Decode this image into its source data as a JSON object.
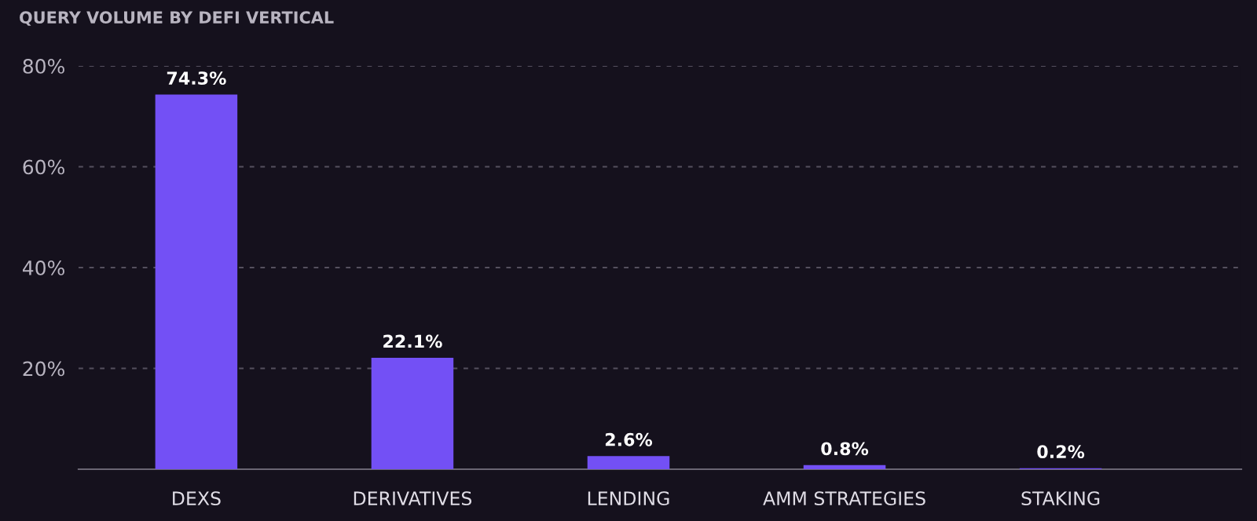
{
  "chart_data": {
    "type": "bar",
    "title": "QUERY VOLUME BY DEFI VERTICAL",
    "categories": [
      "DEXS",
      "DERIVATIVES",
      "LENDING",
      "AMM STRATEGIES",
      "STAKING"
    ],
    "values": [
      74.3,
      22.1,
      2.6,
      0.8,
      0.2
    ],
    "value_labels": [
      "74.3%",
      "22.1%",
      "2.6%",
      "0.8%",
      "0.2%"
    ],
    "color": "#7350f5",
    "ylim": [
      0,
      80
    ],
    "yticks": [
      {
        "value": 0,
        "label": null
      },
      {
        "value": 20,
        "label": "20%"
      },
      {
        "value": 40,
        "label": "40%"
      },
      {
        "value": 60,
        "label": "60%"
      },
      {
        "value": 80,
        "label": "80%"
      }
    ],
    "grid": "y"
  }
}
